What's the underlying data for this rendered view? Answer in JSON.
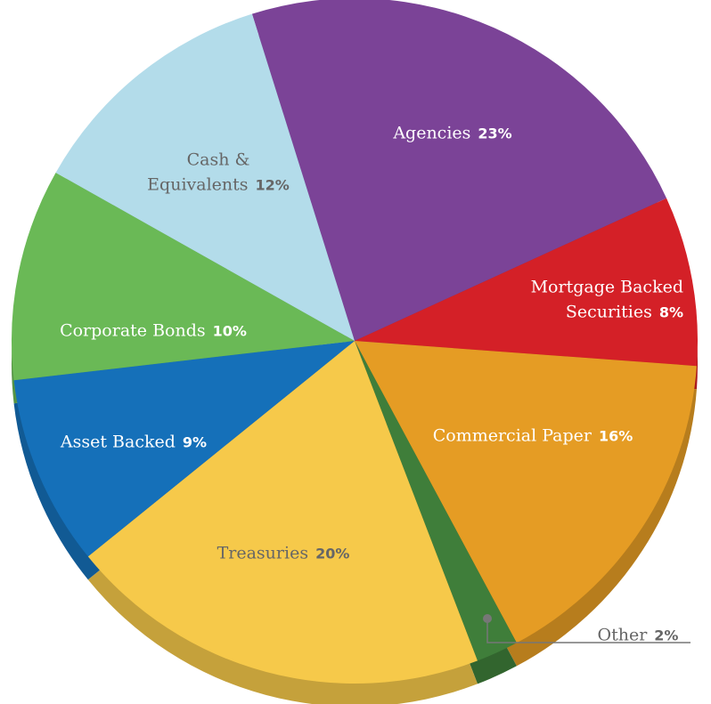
{
  "chart_data": {
    "type": "pie",
    "categories": [
      "Agencies",
      "Mortgage Backed Securities",
      "Commercial Paper",
      "Other",
      "Treasuries",
      "Asset Backed",
      "Corporate Bonds",
      "Cash & Equivalents"
    ],
    "values": [
      23,
      8,
      16,
      2,
      20,
      9,
      10,
      12
    ],
    "value_labels": [
      "23%",
      "8%",
      "16%",
      "2%",
      "20%",
      "9%",
      "10%",
      "12%"
    ],
    "colors": [
      "#7b4397",
      "#d42027",
      "#e59c24",
      "#3f7e3a",
      "#f6c94a",
      "#1570b9",
      "#6ab956",
      "#b3dcea"
    ]
  }
}
